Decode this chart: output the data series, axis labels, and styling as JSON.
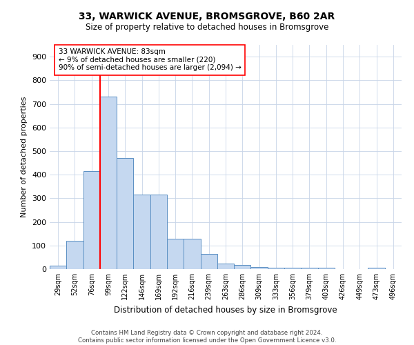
{
  "title_line1": "33, WARWICK AVENUE, BROMSGROVE, B60 2AR",
  "title_line2": "Size of property relative to detached houses in Bromsgrove",
  "xlabel": "Distribution of detached houses by size in Bromsgrove",
  "ylabel": "Number of detached properties",
  "categories": [
    "29sqm",
    "52sqm",
    "76sqm",
    "99sqm",
    "122sqm",
    "146sqm",
    "169sqm",
    "192sqm",
    "216sqm",
    "239sqm",
    "263sqm",
    "286sqm",
    "309sqm",
    "333sqm",
    "356sqm",
    "379sqm",
    "403sqm",
    "426sqm",
    "449sqm",
    "473sqm",
    "496sqm"
  ],
  "values": [
    15,
    120,
    415,
    730,
    470,
    315,
    315,
    128,
    128,
    65,
    22,
    18,
    8,
    5,
    5,
    5,
    5,
    1,
    1,
    5,
    1
  ],
  "bar_color": "#c5d8f0",
  "bar_edge_color": "#5a8fc3",
  "red_line_index": 2,
  "annotation_text_line1": "33 WARWICK AVENUE: 83sqm",
  "annotation_text_line2": "← 9% of detached houses are smaller (220)",
  "annotation_text_line3": "90% of semi-detached houses are larger (2,094) →",
  "ylim": [
    0,
    950
  ],
  "yticks": [
    0,
    100,
    200,
    300,
    400,
    500,
    600,
    700,
    800,
    900
  ],
  "footnote": "Contains HM Land Registry data © Crown copyright and database right 2024.\nContains public sector information licensed under the Open Government Licence v3.0.",
  "bg_color": "#ffffff",
  "grid_color": "#c8d4e8"
}
